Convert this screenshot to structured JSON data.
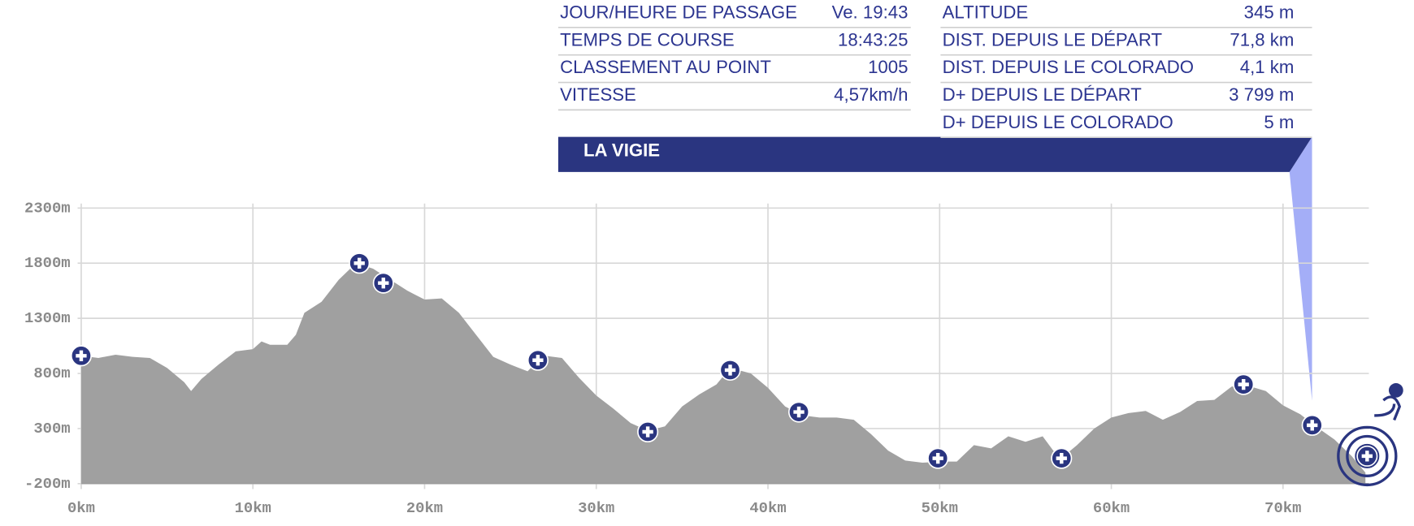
{
  "panel": {
    "left_rows": [
      {
        "label": "JOUR/HEURE DE PASSAGE",
        "value": "Ve. 19:43"
      },
      {
        "label": "TEMPS DE COURSE",
        "value": "18:43:25"
      },
      {
        "label": "CLASSEMENT AU POINT",
        "value": "1005"
      },
      {
        "label": "VITESSE",
        "value": "4,57km/h"
      }
    ],
    "right_rows": [
      {
        "label": "ALTITUDE",
        "value": "345 m"
      },
      {
        "label": "DIST. DEPUIS LE DÉPART",
        "value": "71,8 km"
      },
      {
        "label": "DIST. DEPUIS LE COLORADO",
        "value": "4,1 km"
      },
      {
        "label": "D+ DEPUIS LE DÉPART",
        "value": "3 799 m"
      },
      {
        "label": "D+ DEPUIS LE COLORADO",
        "value": "5 m"
      }
    ],
    "title": "LA VIGIE"
  },
  "chart_data": {
    "type": "area",
    "color": "#a0a0a0",
    "grid": true,
    "xlim": [
      0,
      75
    ],
    "ylim": [
      -200,
      2300
    ],
    "xticks": [
      {
        "value": 0,
        "label": "0km"
      },
      {
        "value": 10,
        "label": "10km"
      },
      {
        "value": 20,
        "label": "20km"
      },
      {
        "value": 30,
        "label": "30km"
      },
      {
        "value": 40,
        "label": "40km"
      },
      {
        "value": 50,
        "label": "50km"
      },
      {
        "value": 60,
        "label": "60km"
      },
      {
        "value": 70,
        "label": "70km"
      }
    ],
    "yticks": [
      {
        "value": 2300,
        "label": "2300m"
      },
      {
        "value": 1800,
        "label": "1800m"
      },
      {
        "value": 1300,
        "label": "1300m"
      },
      {
        "value": 800,
        "label": "800m"
      },
      {
        "value": 300,
        "label": "300m"
      },
      {
        "value": -200,
        "label": "-200m"
      }
    ],
    "x": [
      0,
      1,
      2,
      3,
      4,
      5,
      6,
      6.4,
      7,
      8,
      9,
      10,
      10.5,
      11,
      12,
      12.5,
      13,
      14,
      15,
      16,
      17,
      18,
      19,
      20,
      21,
      22,
      23,
      24,
      25,
      26,
      26.5,
      27,
      28,
      29,
      30,
      31,
      32,
      33,
      34,
      35,
      36,
      37,
      37.8,
      39,
      40,
      41,
      42,
      43,
      44,
      45,
      46,
      47,
      48,
      49,
      50,
      51,
      52,
      53,
      54,
      55,
      56,
      57,
      58,
      59,
      60,
      61,
      62,
      63,
      64,
      65,
      66,
      67,
      67.7,
      69,
      70,
      71,
      72,
      73,
      74,
      74.8
    ],
    "values": [
      960,
      940,
      970,
      950,
      940,
      850,
      720,
      640,
      750,
      880,
      1000,
      1020,
      1090,
      1060,
      1060,
      1150,
      1350,
      1450,
      1650,
      1800,
      1750,
      1650,
      1550,
      1470,
      1480,
      1350,
      1150,
      950,
      880,
      820,
      900,
      960,
      940,
      760,
      600,
      480,
      350,
      280,
      320,
      500,
      610,
      700,
      850,
      800,
      670,
      500,
      420,
      400,
      400,
      380,
      250,
      100,
      10,
      -10,
      0,
      0,
      150,
      120,
      230,
      180,
      230,
      20,
      150,
      300,
      400,
      440,
      460,
      380,
      450,
      550,
      560,
      680,
      700,
      640,
      510,
      430,
      310,
      200,
      50,
      -100
    ],
    "markers": {
      "x": [
        0,
        16.2,
        17.6,
        26.6,
        33,
        37.8,
        41.8,
        49.9,
        57.1,
        67.7,
        71.7,
        74.9
      ],
      "values": [
        960,
        1800,
        1620,
        920,
        270,
        830,
        450,
        30,
        30,
        700,
        330,
        50
      ]
    }
  }
}
